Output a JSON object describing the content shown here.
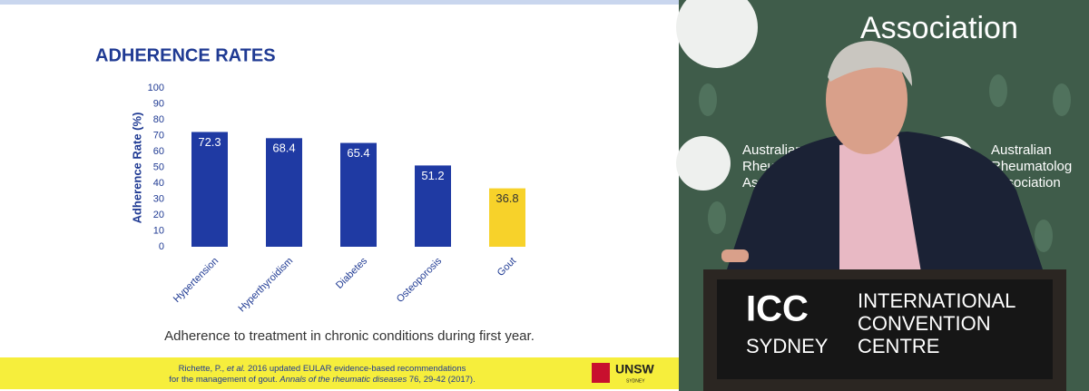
{
  "chart_data": {
    "type": "bar",
    "title": "ADHERENCE RATES",
    "y_label": "Adherence Rate (%)",
    "categories": [
      "Hypertension",
      "Hyperthyroidism",
      "Diabetes",
      "Osteoporosis",
      "Gout"
    ],
    "values": [
      72.3,
      68.4,
      65.4,
      51.2,
      36.8
    ],
    "colors": [
      "#1f3aa3",
      "#1f3aa3",
      "#1f3aa3",
      "#1f3aa3",
      "#f7d22a"
    ],
    "ylim": [
      0,
      100
    ],
    "yticks": [
      0,
      10,
      20,
      30,
      40,
      50,
      60,
      70,
      80,
      90,
      100
    ],
    "grid": false,
    "caption": "Adherence to treatment in chronic conditions during first year."
  },
  "citation": {
    "lines": [
      [
        "Richette, P., ",
        "et al.",
        " 2016 updated EULAR evidence-based recommendations"
      ],
      [
        "for the management of gout. ",
        "Annals of the rheumatic diseases",
        " 76, 29-42 (2017)."
      ]
    ]
  },
  "slide_logo": {
    "name": "UNSW",
    "sub": "SYDNEY"
  },
  "backdrop": {
    "top": "Association",
    "left_logo": [
      "Australian",
      "Rheum",
      "Asso"
    ],
    "right_logo": [
      "Australian",
      "Rheumatolog",
      "Association"
    ]
  },
  "podium": {
    "logo": "ICC",
    "city": "SYDNEY",
    "name": [
      "INTERNATIONAL",
      "CONVENTION",
      "CENTRE"
    ]
  }
}
